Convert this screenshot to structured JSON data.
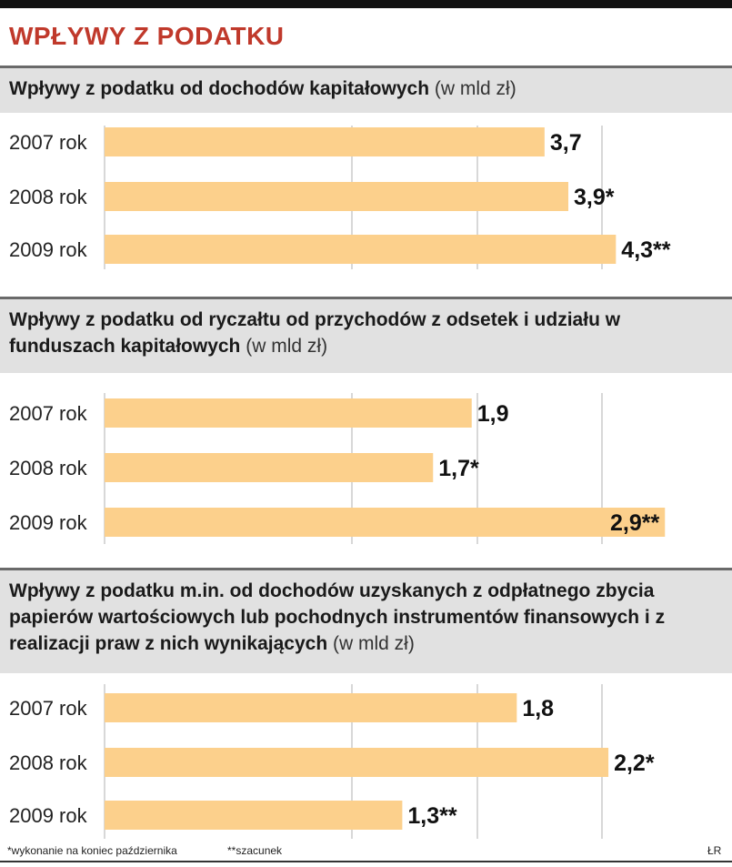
{
  "title": "WPŁYWY Z PODATKU",
  "colors": {
    "title": "#c0392b",
    "bar": "#fcd08c",
    "grid": "#bdbdbd",
    "header_bg": "#e1e1e1"
  },
  "chart_data": [
    {
      "type": "bar",
      "orientation": "horizontal",
      "title": "Wpływy z podatku od dochodów kapitałowych",
      "unit": "(w mld zł)",
      "categories": [
        "2007 rok",
        "2008 rok",
        "2009 rok"
      ],
      "values": [
        3.7,
        3.9,
        4.3
      ],
      "labels": [
        "3,7",
        "3,9*",
        "4,3**"
      ],
      "xlim": [
        0,
        5.2
      ],
      "grid": true
    },
    {
      "type": "bar",
      "orientation": "horizontal",
      "title": "Wpływy z podatku od ryczałtu od przychodów z odsetek i udziału w funduszach kapitałowych",
      "unit": "(w mld zł)",
      "categories": [
        "2007 rok",
        "2008 rok",
        "2009 rok"
      ],
      "values": [
        1.9,
        1.7,
        2.9
      ],
      "labels": [
        "1,9",
        "1,7*",
        "2,9**"
      ],
      "xlim": [
        0,
        3.2
      ],
      "grid": true
    },
    {
      "type": "bar",
      "orientation": "horizontal",
      "title": "Wpływy z podatku m.in. od dochodów uzyskanych z odpłatnego zbycia papierów wartościowych lub pochodnych instrumentów finansowych i z realizacji praw z nich wynikających",
      "unit": "(w mld zł)",
      "categories": [
        "2007 rok",
        "2008 rok",
        "2009 rok"
      ],
      "values": [
        1.8,
        2.2,
        1.3
      ],
      "labels": [
        "1,8",
        "2,2*",
        "1,3**"
      ],
      "xlim": [
        0,
        2.7
      ],
      "grid": true
    }
  ],
  "footnotes": {
    "note1": "*wykonanie na koniec października",
    "note2": "**szacunek",
    "source": "ŁR"
  }
}
